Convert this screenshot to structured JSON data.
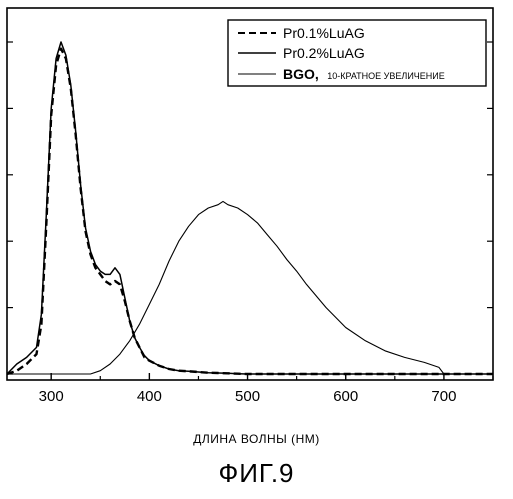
{
  "chart_data": {
    "type": "line",
    "title": "",
    "xlabel": "ДЛИНА ВОЛНЫ (НМ)",
    "ylabel": "",
    "xlim": [
      255,
      750
    ],
    "ylim": [
      0,
      1.0
    ],
    "xticks": [
      300,
      400,
      500,
      600,
      700
    ],
    "xtick_labels": [
      "300",
      "400",
      "500",
      "600",
      "700"
    ],
    "grid": false,
    "legend_position": "top-right",
    "series": [
      {
        "name": "Pr0.1%LuAG",
        "style": "dashed",
        "x": [
          255,
          265,
          275,
          285,
          290,
          295,
          300,
          305,
          310,
          315,
          320,
          325,
          330,
          335,
          340,
          345,
          350,
          355,
          360,
          365,
          370,
          375,
          380,
          385,
          390,
          395,
          400,
          410,
          420,
          430,
          440,
          450,
          460,
          470,
          480,
          490,
          500,
          750
        ],
        "y": [
          0.0,
          0.01,
          0.03,
          0.06,
          0.15,
          0.45,
          0.78,
          0.93,
          0.98,
          0.95,
          0.86,
          0.72,
          0.56,
          0.43,
          0.36,
          0.32,
          0.3,
          0.28,
          0.27,
          0.28,
          0.27,
          0.22,
          0.16,
          0.11,
          0.08,
          0.05,
          0.04,
          0.025,
          0.015,
          0.01,
          0.008,
          0.006,
          0.004,
          0.003,
          0.002,
          0.001,
          0.0,
          0.0
        ]
      },
      {
        "name": "Pr0.2%LuAG",
        "style": "solid",
        "x": [
          255,
          265,
          275,
          285,
          290,
          295,
          300,
          305,
          310,
          315,
          320,
          325,
          330,
          335,
          340,
          345,
          350,
          355,
          360,
          365,
          370,
          375,
          380,
          385,
          390,
          395,
          400,
          410,
          420,
          430,
          440,
          450,
          460,
          470,
          480,
          490,
          500,
          750
        ],
        "y": [
          0.0,
          0.03,
          0.05,
          0.08,
          0.18,
          0.48,
          0.8,
          0.95,
          1.0,
          0.96,
          0.87,
          0.73,
          0.57,
          0.44,
          0.37,
          0.33,
          0.31,
          0.3,
          0.3,
          0.32,
          0.3,
          0.23,
          0.16,
          0.11,
          0.08,
          0.055,
          0.04,
          0.025,
          0.015,
          0.01,
          0.008,
          0.006,
          0.004,
          0.003,
          0.002,
          0.001,
          0.0,
          0.0
        ]
      },
      {
        "name": "BGO, 10-КРАТНОЕ УВЕЛИЧЕНИЕ",
        "style": "solid-thin",
        "x": [
          255,
          340,
          350,
          360,
          370,
          380,
          390,
          400,
          410,
          420,
          430,
          440,
          450,
          460,
          470,
          475,
          480,
          490,
          500,
          510,
          520,
          530,
          540,
          550,
          560,
          580,
          600,
          620,
          640,
          660,
          680,
          695,
          700,
          750
        ],
        "y": [
          0.0,
          0.0,
          0.01,
          0.03,
          0.06,
          0.1,
          0.15,
          0.21,
          0.27,
          0.34,
          0.4,
          0.445,
          0.48,
          0.5,
          0.51,
          0.52,
          0.51,
          0.5,
          0.48,
          0.455,
          0.42,
          0.385,
          0.345,
          0.31,
          0.27,
          0.2,
          0.14,
          0.1,
          0.07,
          0.05,
          0.035,
          0.02,
          0.0,
          0.0
        ]
      }
    ]
  },
  "legend": {
    "items": [
      {
        "label": "Pr0.1%LuAG"
      },
      {
        "label": "Pr0.2%LuAG"
      },
      {
        "label_bold": "BGO,",
        "label_rest": "10-КРАТНОЕ УВЕЛИЧЕНИЕ"
      }
    ]
  },
  "figure_caption": "ФИГ.9"
}
